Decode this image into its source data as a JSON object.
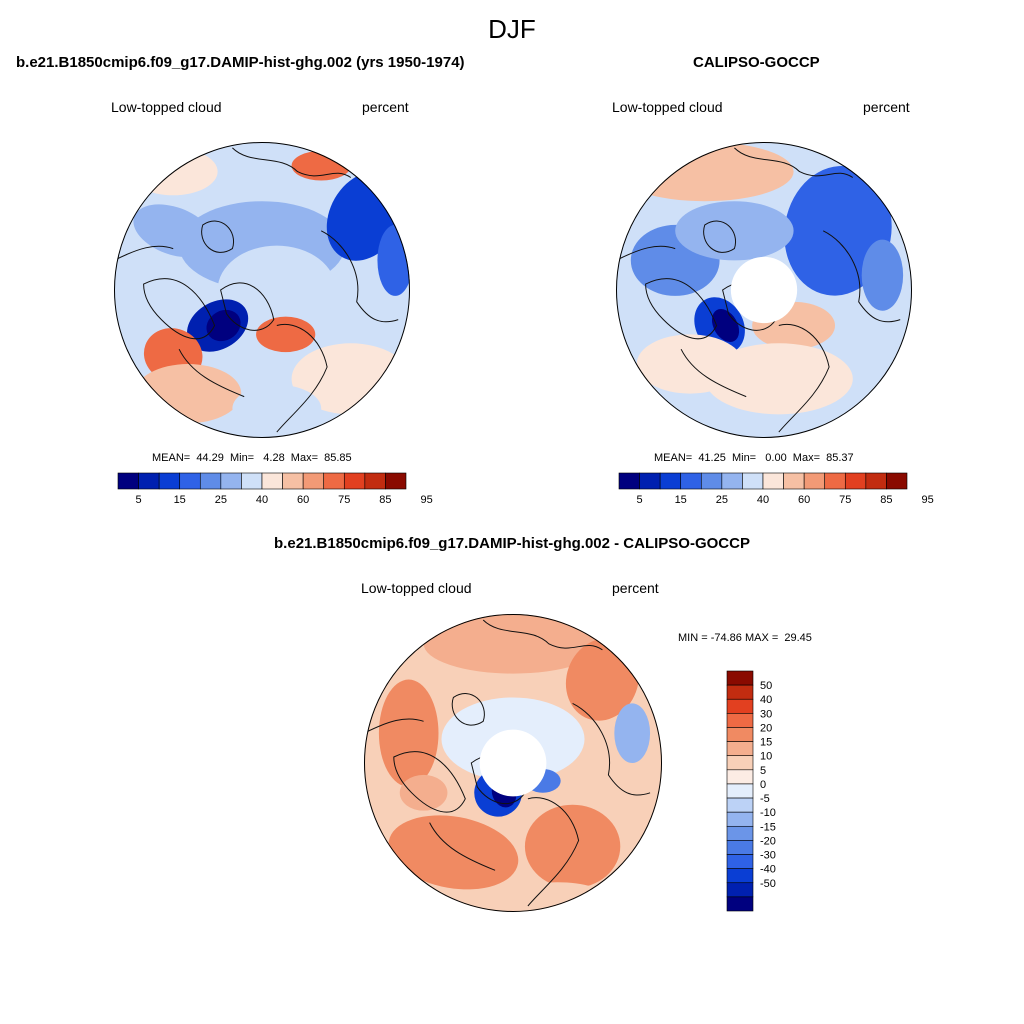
{
  "season": "DJF",
  "colors": {
    "abs_scale": [
      "#00007f",
      "#0020b0",
      "#0a3ed4",
      "#2f62e6",
      "#5f8ce8",
      "#94b4ef",
      "#cfe0f8",
      "#fbe6da",
      "#f6c0a4",
      "#f29a76",
      "#ee6a44",
      "#e24020",
      "#c22c10",
      "#8a0a00"
    ],
    "diff_scale": [
      "#00007f",
      "#0020b0",
      "#0a3ed4",
      "#2f62e6",
      "#4a7ae6",
      "#6b95e8",
      "#94b4ef",
      "#bcd2f6",
      "#e4eefc",
      "#fcece4",
      "#f8d0b8",
      "#f4ae8e",
      "#f08a62",
      "#ee6a44",
      "#e24020",
      "#c22c10",
      "#8a0a00"
    ]
  },
  "panels": [
    {
      "title": "b.e21.B1850cmip6.f09_g17.DAMIP-hist-ghg.002 (yrs 1950-1974)",
      "variable": "Low-topped cloud",
      "units": "percent",
      "stats": "MEAN=  44.29  Min=   4.28  Max=  85.85",
      "pole_hole": false
    },
    {
      "title": "CALIPSO-GOCCP",
      "variable": "Low-topped cloud",
      "units": "percent",
      "stats": "MEAN=  41.25  Min=   0.00  Max=  85.37",
      "pole_hole": true
    },
    {
      "title": "b.e21.B1850cmip6.f09_g17.DAMIP-hist-ghg.002 - CALIPSO-GOCCP",
      "variable": "Low-topped cloud",
      "units": "percent",
      "stats": "MIN = -74.86 MAX =  29.45",
      "pole_hole": true
    }
  ],
  "abs_colorbar_labels": [
    "5",
    "15",
    "25",
    "40",
    "60",
    "75",
    "85",
    "95"
  ],
  "diff_colorbar_labels": [
    "50",
    "40",
    "30",
    "20",
    "15",
    "10",
    "5",
    "0",
    "-5",
    "-10",
    "-15",
    "-20",
    "-30",
    "-40",
    "-50"
  ]
}
